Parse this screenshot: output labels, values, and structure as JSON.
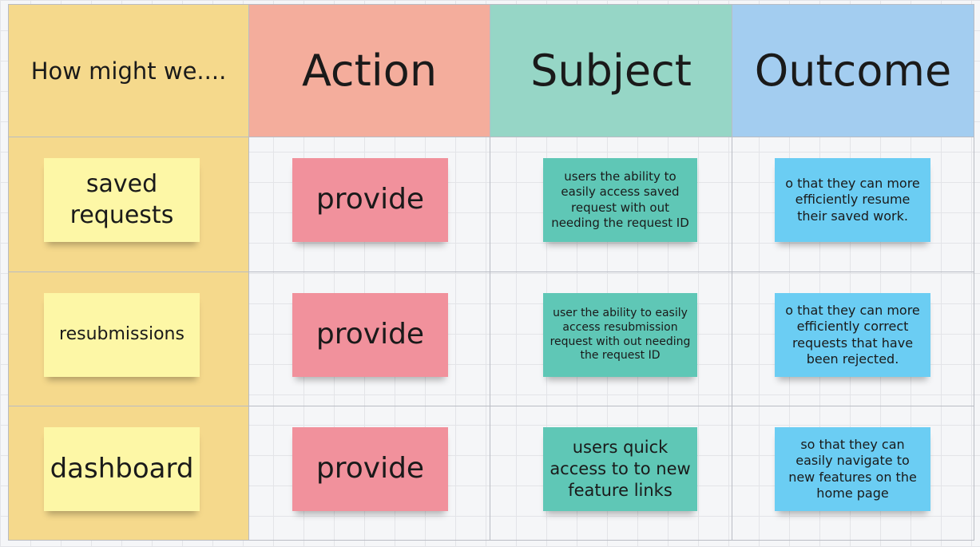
{
  "header": [
    "How might we....",
    "Action",
    "Subject",
    "Outcome"
  ],
  "rows": [
    [
      "saved requests",
      "provide",
      "users the ability to easily access saved request with out needing the request ID",
      "o that they can more efficiently resume their saved work."
    ],
    [
      "resubmissions",
      "provide",
      "user the ability to easily access resubmission request with out needing the request ID",
      "o that they can more efficiently correct requests that have been rejected."
    ],
    [
      "dashboard",
      "provide",
      "users quick access to to new feature links",
      "so that they can easily navigate to new features on the home page"
    ]
  ]
}
